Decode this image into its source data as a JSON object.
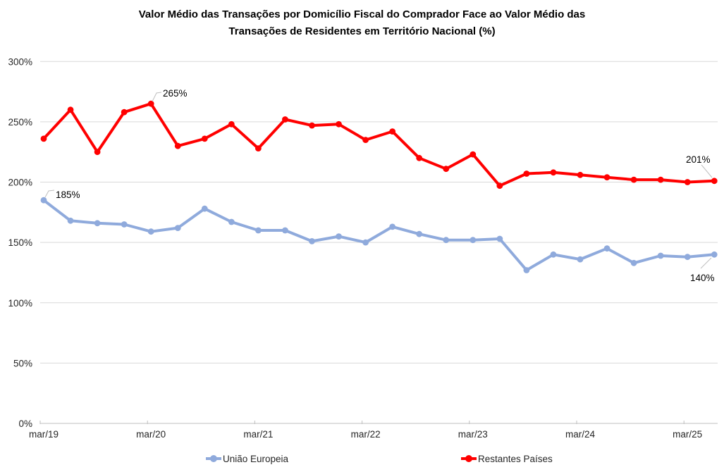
{
  "title": {
    "line1": "Valor Médio das Transações por Domicílio Fiscal do Comprador Face ao Valor Médio das",
    "line2": "Transações de Residentes em Território Nacional (%)"
  },
  "legend": [
    {
      "id": "ue",
      "label": "União Europeia",
      "color": "#8FAADC"
    },
    {
      "id": "rp",
      "label": "Restantes Países",
      "color": "#FF0000"
    }
  ],
  "chart_data": {
    "type": "line",
    "title": "Valor Médio das Transações por Domicílio Fiscal do Comprador Face ao Valor Médio das Transações de Residentes em Território Nacional (%)",
    "categories": [
      "mar/19",
      "jun/19",
      "set/19",
      "dez/19",
      "mar/20",
      "jun/20",
      "set/20",
      "dez/20",
      "mar/21",
      "jun/21",
      "set/21",
      "dez/21",
      "mar/22",
      "jun/22",
      "set/22",
      "dez/22",
      "mar/23",
      "jun/23",
      "set/23",
      "dez/23",
      "mar/24",
      "jun/24",
      "set/24",
      "dez/24",
      "mar/25",
      "jun/25"
    ],
    "x_axis_tick_labels": [
      "mar/19",
      "mar/20",
      "mar/21",
      "mar/22",
      "mar/23",
      "mar/24",
      "mar/25"
    ],
    "y_axis_tick_labels": [
      "300%",
      "250%",
      "200%",
      "150%",
      "100%",
      "50%",
      "0%"
    ],
    "ylim": [
      0,
      300
    ],
    "grid": true,
    "legend_position": "bottom",
    "series": [
      {
        "name": "União Europeia",
        "color": "#8FAADC",
        "values": [
          185,
          168,
          166,
          165,
          159,
          162,
          178,
          167,
          160,
          160,
          151,
          155,
          150,
          163,
          157,
          152,
          152,
          153,
          127,
          140,
          136,
          145,
          133,
          139,
          138,
          140
        ]
      },
      {
        "name": "Restantes Países",
        "color": "#FF0000",
        "values": [
          236,
          260,
          225,
          258,
          265,
          230,
          236,
          248,
          228,
          252,
          247,
          248,
          235,
          242,
          220,
          211,
          223,
          197,
          207,
          208,
          206,
          204,
          202,
          202,
          200,
          201
        ]
      }
    ],
    "annotations": [
      {
        "series": "União Europeia",
        "category": "mar/19",
        "text": "185%"
      },
      {
        "series": "Restantes Países",
        "category": "mar/20",
        "text": "265%"
      },
      {
        "series": "Restantes Países",
        "category": "jun/25",
        "text": "201%"
      },
      {
        "series": "União Europeia",
        "category": "jun/25",
        "text": "140%"
      }
    ],
    "colors": {
      "gridline": "#D9D9D9",
      "axis_line": "#BFBFBF",
      "leader_line": "#BFBFBF"
    }
  }
}
